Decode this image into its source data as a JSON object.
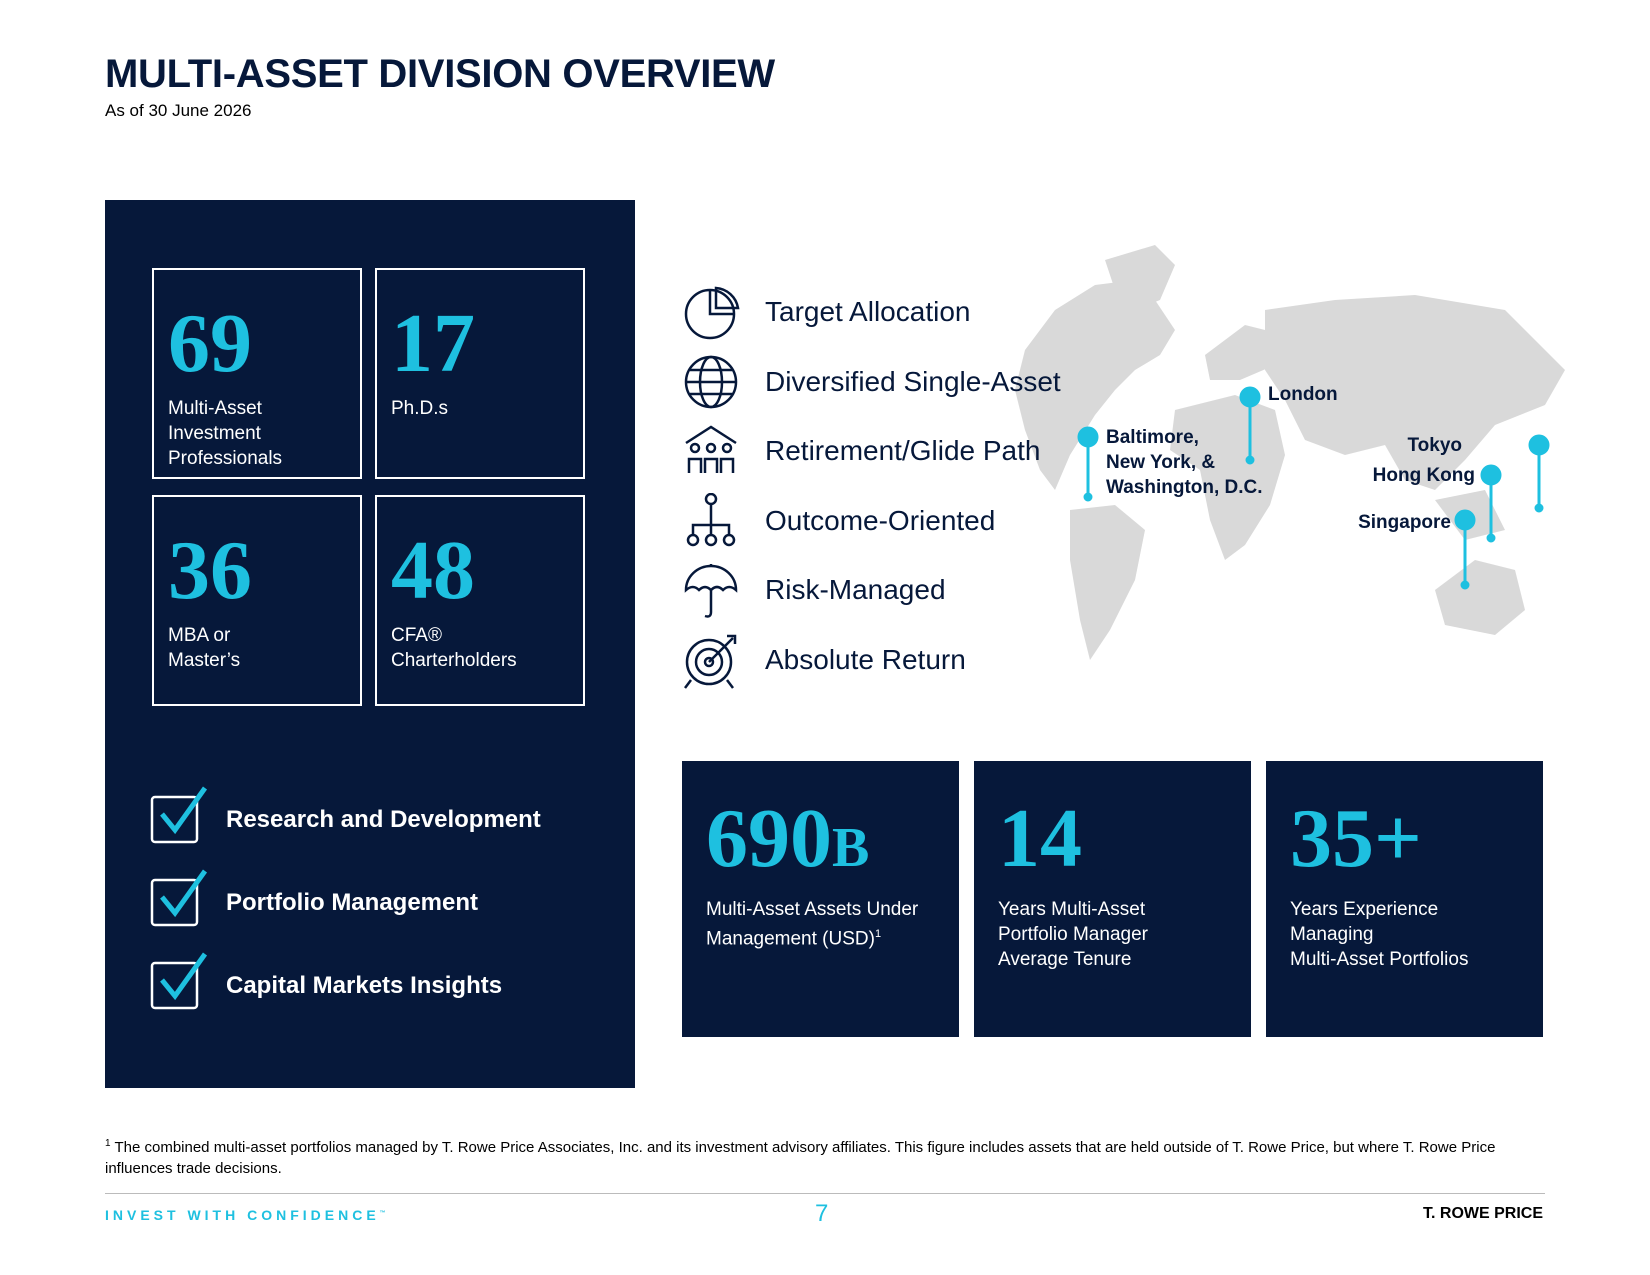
{
  "header": {
    "title": "MULTI-ASSET DIVISION OVERVIEW",
    "subtitle": "As of 30 June 2026"
  },
  "stats": [
    {
      "number": "69",
      "label": [
        "Multi-Asset",
        "Investment",
        "Professionals"
      ]
    },
    {
      "number": "17",
      "label": [
        "Ph.D.s"
      ]
    },
    {
      "number": "36",
      "label": [
        "MBA or",
        "Master’s"
      ]
    },
    {
      "number": "48",
      "label": [
        "CFA®",
        "Charterholders"
      ]
    }
  ],
  "capabilities": [
    "Research and Development",
    "Portfolio Management",
    "Capital Markets Insights"
  ],
  "strategies": [
    "Target Allocation",
    "Diversified Single-Asset",
    "Retirement/Glide Path",
    "Outcome-Oriented",
    "Risk-Managed",
    "Absolute Return"
  ],
  "locations": [
    {
      "label": [
        "Baltimore,",
        "New York, &",
        "Washington, D.C."
      ]
    },
    {
      "label": [
        "London"
      ]
    },
    {
      "label": [
        "Tokyo"
      ]
    },
    {
      "label": [
        "Hong Kong"
      ]
    },
    {
      "label": [
        "Singapore"
      ]
    }
  ],
  "kpis": [
    {
      "number": "690",
      "suffix": "B",
      "label": [
        "Multi-Asset Assets Under",
        "Management (USD)"
      ],
      "note": "1"
    },
    {
      "number": "14",
      "label": [
        "Years Multi-Asset",
        "Portfolio Manager",
        "Average Tenure"
      ]
    },
    {
      "number": "35+",
      "label": [
        "Years Experience",
        "Managing",
        "Multi-Asset Portfolios"
      ]
    }
  ],
  "footnote": {
    "marker": "1",
    "text": "The combined multi-asset portfolios managed by T. Rowe Price Associates, Inc. and its investment advisory affiliates. This figure includes assets that are held outside of T. Rowe Price, but where T. Rowe Price influences trade decisions."
  },
  "footer": {
    "tagline": "INVEST WITH CONFIDENCE",
    "tm": "™",
    "page": "7",
    "brand": "T. ROWE PRICE"
  }
}
